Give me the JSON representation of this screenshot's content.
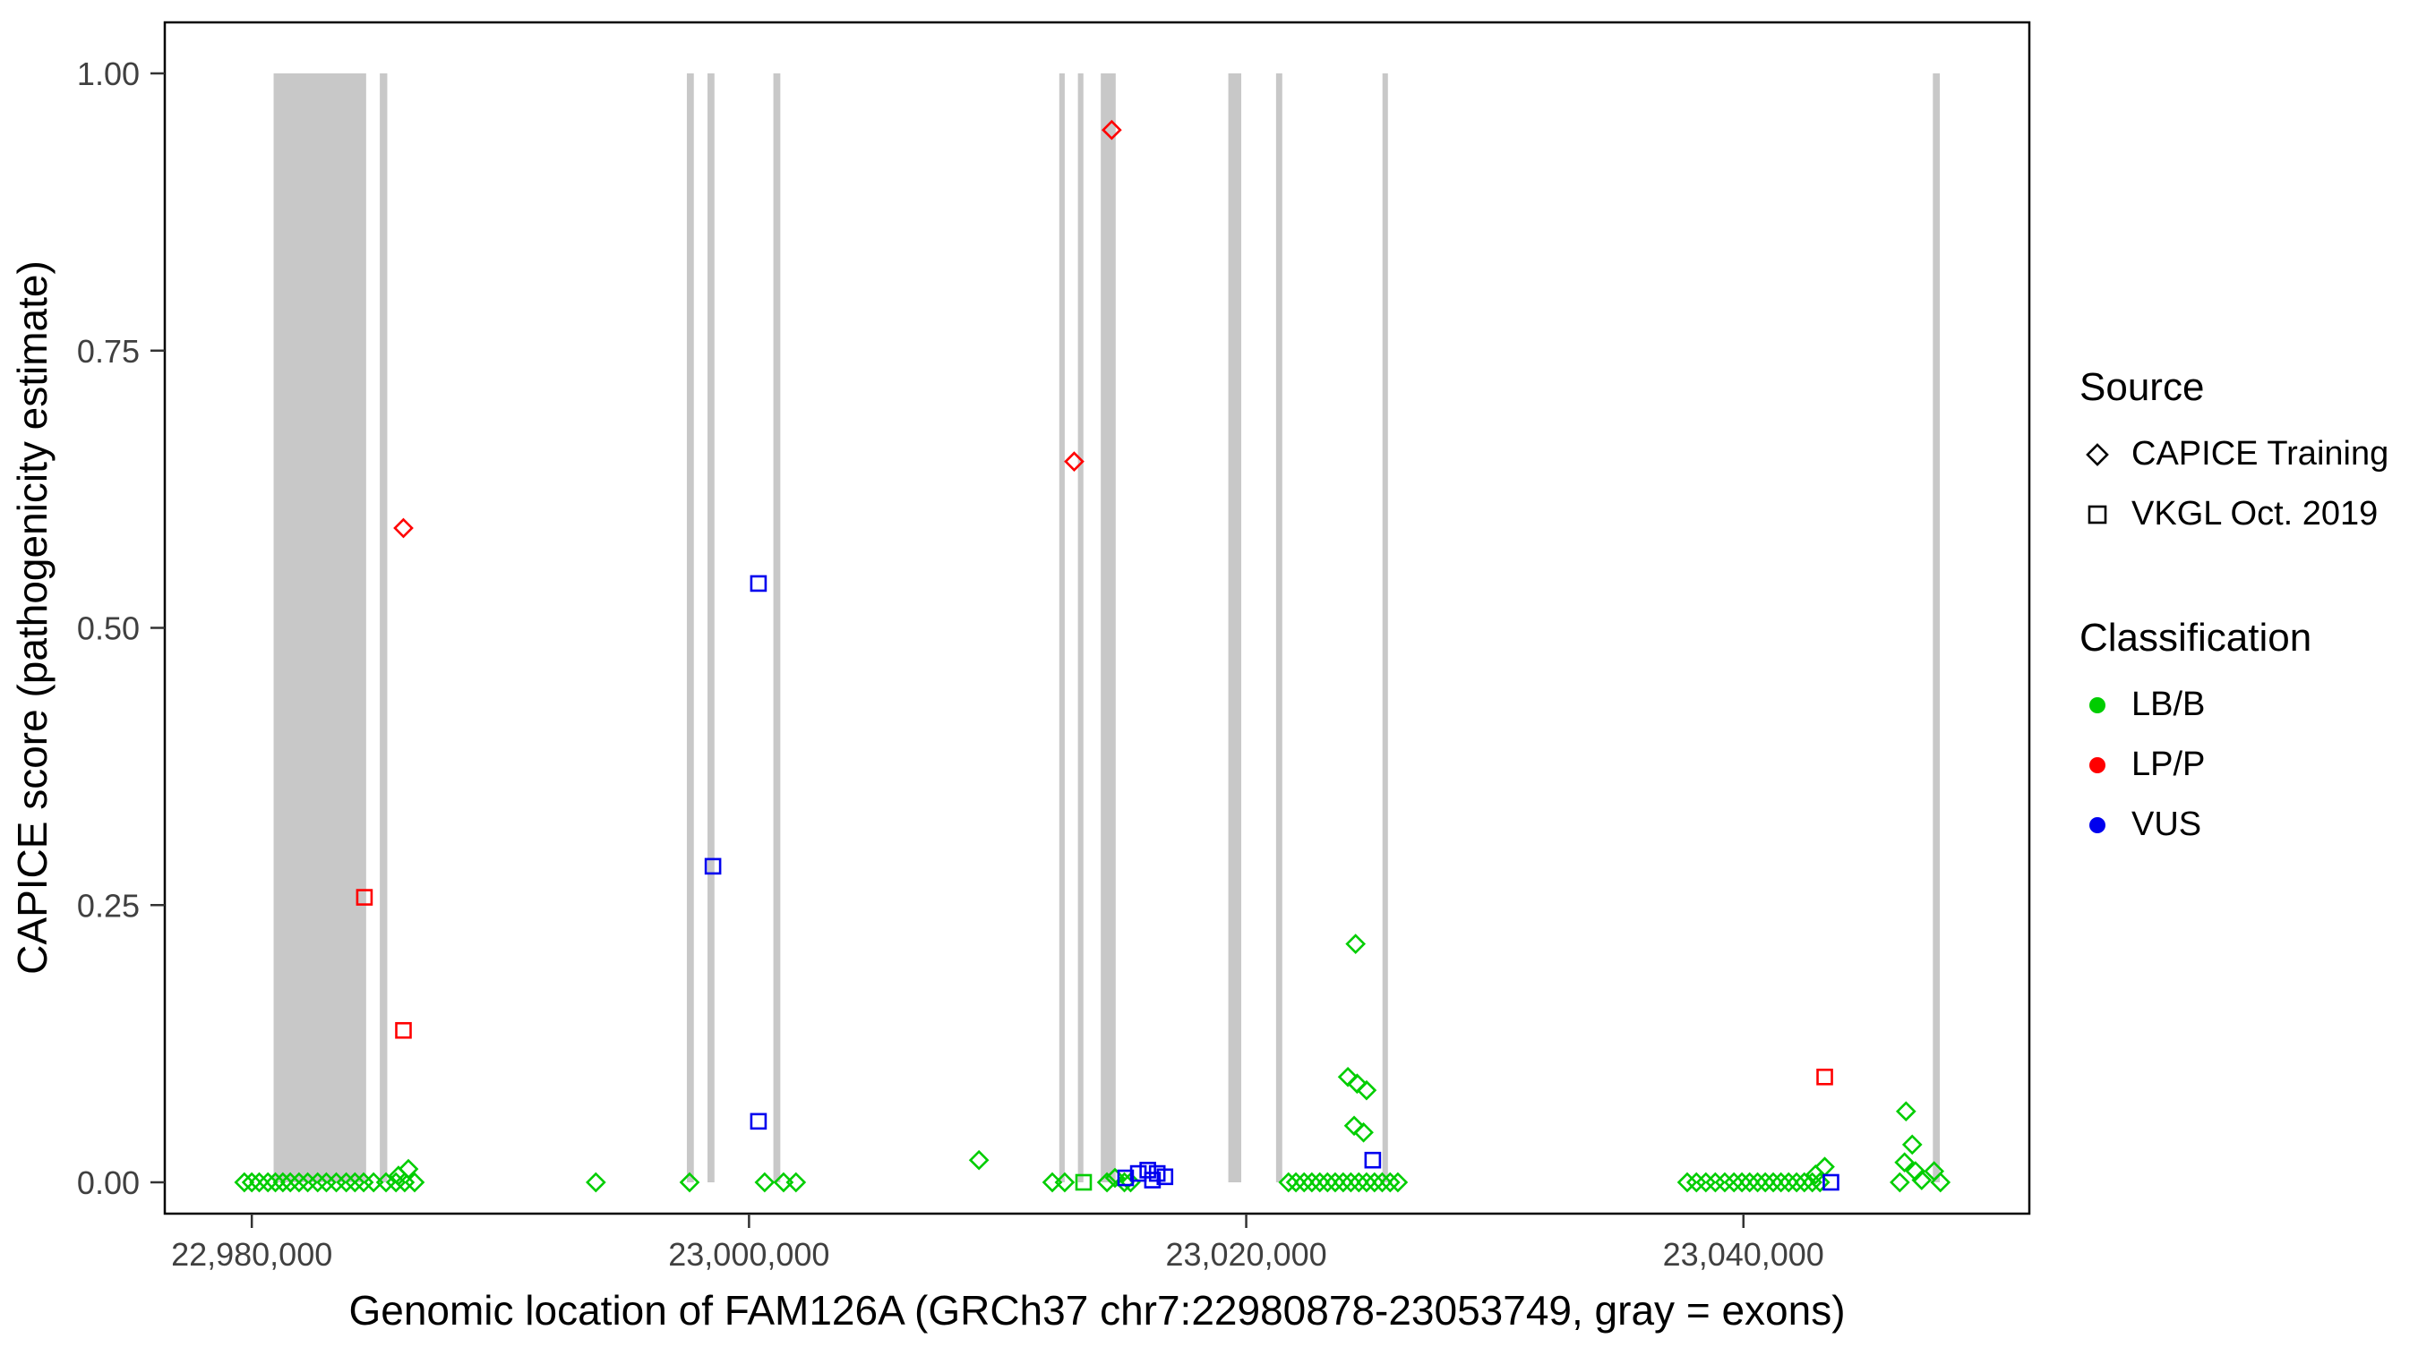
{
  "chart_data": {
    "type": "scatter",
    "title": "",
    "xlabel": "Genomic location of FAM126A (GRCh37 chr7:22980878-23053749, gray = exons)",
    "ylabel": "CAPICE score (pathogenicity estimate)",
    "xlim": [
      22976500,
      23051500
    ],
    "ylim": [
      0,
      1
    ],
    "grid": false,
    "exon_color": "#C8C8C8",
    "x_ticks": [
      {
        "value": 22980000,
        "label": "22,980,000"
      },
      {
        "value": 23000000,
        "label": "23,000,000"
      },
      {
        "value": 23020000,
        "label": "23,020,000"
      },
      {
        "value": 23040000,
        "label": "23,040,000"
      }
    ],
    "y_ticks": [
      {
        "value": 0,
        "label": "0.00"
      },
      {
        "value": 0.25,
        "label": "0.25"
      },
      {
        "value": 0.5,
        "label": "0.50"
      },
      {
        "value": 0.75,
        "label": "0.75"
      },
      {
        "value": 1,
        "label": "1.00"
      }
    ],
    "exons": [
      [
        22980878,
        22984600
      ],
      [
        22985150,
        22985450
      ],
      [
        22997500,
        22997780
      ],
      [
        22998330,
        22998610
      ],
      [
        23000980,
        23001260
      ],
      [
        23012480,
        23012700
      ],
      [
        23013230,
        23013450
      ],
      [
        23014150,
        23014750
      ],
      [
        23019280,
        23019800
      ],
      [
        23021200,
        23021450
      ],
      [
        23025480,
        23025700
      ],
      [
        23047620,
        23047900
      ]
    ],
    "legend": {
      "position": "right",
      "source": {
        "title": "Source",
        "items": [
          {
            "shape": "diamond",
            "label": "CAPICE Training"
          },
          {
            "shape": "square",
            "label": "VKGL Oct. 2019"
          }
        ]
      },
      "classification": {
        "title": "Classification",
        "items": [
          {
            "label": "LB/B",
            "color": "#00CD00"
          },
          {
            "label": "LP/P",
            "color": "#FF0000"
          },
          {
            "label": "VUS",
            "color": "#0000EE"
          }
        ]
      }
    },
    "series": [
      {
        "name": "CAPICE Training LB/B",
        "source": "CAPICE Training",
        "classification": "LB/B",
        "shape": "diamond",
        "color": "#00CD00",
        "points": [
          [
            22979700,
            0
          ],
          [
            22980000,
            0
          ],
          [
            22980300,
            0
          ],
          [
            22980650,
            0
          ],
          [
            22980950,
            0
          ],
          [
            22981250,
            0
          ],
          [
            22981550,
            0
          ],
          [
            22981900,
            0
          ],
          [
            22982250,
            0
          ],
          [
            22982650,
            0
          ],
          [
            22983000,
            0
          ],
          [
            22983400,
            0
          ],
          [
            22983800,
            0
          ],
          [
            22984150,
            0
          ],
          [
            22984500,
            0
          ],
          [
            22984900,
            0
          ],
          [
            22985400,
            0
          ],
          [
            22985800,
            0
          ],
          [
            22985900,
            0.006
          ],
          [
            22986150,
            0
          ],
          [
            22986300,
            0.012
          ],
          [
            22986550,
            0
          ],
          [
            22993840,
            0
          ],
          [
            22997610,
            0
          ],
          [
            23000630,
            0
          ],
          [
            23001390,
            0
          ],
          [
            23001890,
            0
          ],
          [
            23009250,
            0.02
          ],
          [
            23012200,
            0
          ],
          [
            23012700,
            0
          ],
          [
            23014400,
            0
          ],
          [
            23014720,
            0.004
          ],
          [
            23015100,
            0
          ],
          [
            23015350,
            0
          ],
          [
            23021700,
            0
          ],
          [
            23022000,
            0
          ],
          [
            23022330,
            0
          ],
          [
            23022640,
            0
          ],
          [
            23022960,
            0
          ],
          [
            23023270,
            0
          ],
          [
            23023580,
            0
          ],
          [
            23023900,
            0
          ],
          [
            23024210,
            0
          ],
          [
            23024530,
            0
          ],
          [
            23024840,
            0
          ],
          [
            23025160,
            0
          ],
          [
            23025470,
            0
          ],
          [
            23025790,
            0
          ],
          [
            23026100,
            0
          ],
          [
            23024400,
            0.215
          ],
          [
            23024090,
            0.095
          ],
          [
            23024460,
            0.089
          ],
          [
            23024840,
            0.083
          ],
          [
            23024340,
            0.051
          ],
          [
            23024720,
            0.045
          ],
          [
            23037740,
            0
          ],
          [
            23038110,
            0
          ],
          [
            23038490,
            0
          ],
          [
            23038870,
            0
          ],
          [
            23039250,
            0
          ],
          [
            23039620,
            0
          ],
          [
            23039940,
            0
          ],
          [
            23040250,
            0
          ],
          [
            23040570,
            0
          ],
          [
            23040880,
            0
          ],
          [
            23041200,
            0
          ],
          [
            23041510,
            0
          ],
          [
            23041820,
            0
          ],
          [
            23042140,
            0
          ],
          [
            23042450,
            0
          ],
          [
            23042770,
            0
          ],
          [
            23043080,
            0
          ],
          [
            23042900,
            0.007
          ],
          [
            23043270,
            0.014
          ],
          [
            23046290,
            0
          ],
          [
            23046480,
            0.018
          ],
          [
            23046540,
            0.064
          ],
          [
            23046790,
            0.034
          ],
          [
            23046920,
            0.01
          ],
          [
            23047170,
            0.002
          ],
          [
            23047670,
            0.01
          ],
          [
            23047925,
            0
          ]
        ]
      },
      {
        "name": "CAPICE Training LP/P",
        "source": "CAPICE Training",
        "classification": "LP/P",
        "shape": "diamond",
        "color": "#FF0000",
        "points": [
          [
            22986100,
            0.59
          ],
          [
            23013080,
            0.65
          ],
          [
            23014590,
            0.949
          ]
        ]
      },
      {
        "name": "VKGL Oct. 2019 LB/B",
        "source": "VKGL Oct. 2019",
        "classification": "LB/B",
        "shape": "square",
        "color": "#00CD00",
        "points": [
          [
            23013460,
            0
          ]
        ]
      },
      {
        "name": "VKGL Oct. 2019 LP/P",
        "source": "VKGL Oct. 2019",
        "classification": "LP/P",
        "shape": "square",
        "color": "#FF0000",
        "points": [
          [
            22984530,
            0.257
          ],
          [
            22986100,
            0.137
          ],
          [
            23043270,
            0.095
          ]
        ]
      },
      {
        "name": "VKGL Oct. 2019 VUS",
        "source": "VKGL Oct. 2019",
        "classification": "VUS",
        "shape": "square",
        "color": "#0000EE",
        "points": [
          [
            22998550,
            0.285
          ],
          [
            23000380,
            0.54
          ],
          [
            23000380,
            0.055
          ],
          [
            23015150,
            0.004
          ],
          [
            23015660,
            0.008
          ],
          [
            23016040,
            0.011
          ],
          [
            23016420,
            0.008
          ],
          [
            23016730,
            0.005
          ],
          [
            23016230,
            0.002
          ],
          [
            23025090,
            0.02
          ],
          [
            23043520,
            0
          ]
        ]
      }
    ]
  }
}
